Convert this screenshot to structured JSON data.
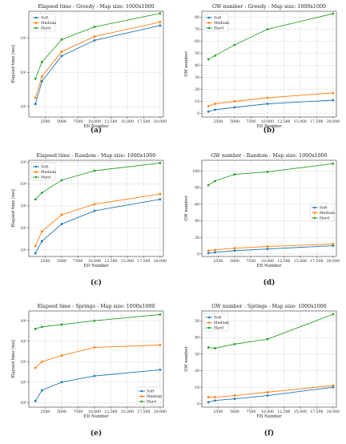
{
  "figure": {
    "colors": {
      "Soft": "#1f77b4",
      "Medium": "#ff7f0e",
      "Hard": "#2ca02c"
    }
  },
  "chart_data": [
    {
      "id": "a",
      "caption": "(a)",
      "type": "line",
      "title": "Elapsed time - Greedy - Map size: 1000x1000",
      "xlabel": "ED Number",
      "ylabel": "Elapsed time [ms]",
      "yscale": "log",
      "xlim": [
        0,
        20500
      ],
      "ylim": [
        5,
        6000
      ],
      "x_ticks": [
        2500,
        5000,
        7500,
        10000,
        12500,
        15000,
        17500,
        20000
      ],
      "x_tick_labels": [
        "2500",
        "5000",
        "7500",
        "10,000",
        "12,500",
        "15,000",
        "17,500",
        "20,000"
      ],
      "y_ticks": [
        10,
        100,
        1000
      ],
      "y_tick_labels": [
        "10¹",
        "10²",
        "10³"
      ],
      "grid": true,
      "legend_position": "top-left",
      "x": [
        1000,
        2000,
        5000,
        10000,
        20000
      ],
      "series": [
        {
          "name": "Soft",
          "values": [
            12,
            55,
            300,
            850,
            2300
          ]
        },
        {
          "name": "Medium",
          "values": [
            18,
            75,
            400,
            1100,
            2900
          ]
        },
        {
          "name": "Hard",
          "values": [
            65,
            200,
            900,
            2100,
            5200
          ]
        }
      ]
    },
    {
      "id": "b",
      "caption": "(b)",
      "type": "line",
      "title": "GW number - Greedy - Map size: 1000x1000",
      "xlabel": "ED Number",
      "ylabel": "GW number",
      "yscale": "linear",
      "xlim": [
        0,
        20500
      ],
      "ylim": [
        -3,
        85
      ],
      "x_ticks": [
        2500,
        5000,
        7500,
        10000,
        12500,
        15000,
        17500,
        20000
      ],
      "x_tick_labels": [
        "2500",
        "5000",
        "7500",
        "10,000",
        "12,500",
        "15,000",
        "17,500",
        "20,000"
      ],
      "y_ticks": [
        0,
        10,
        20,
        30,
        40,
        50,
        60,
        70,
        80
      ],
      "y_tick_labels": [
        "0",
        "10",
        "20",
        "30",
        "40",
        "50",
        "60",
        "70",
        "80"
      ],
      "grid": true,
      "legend_position": "top-left",
      "x": [
        1000,
        2000,
        5000,
        10000,
        20000
      ],
      "series": [
        {
          "name": "Soft",
          "values": [
            1.5,
            3,
            5,
            8,
            11
          ]
        },
        {
          "name": "Medium",
          "values": [
            6,
            8,
            10,
            13,
            17
          ]
        },
        {
          "name": "Hard",
          "values": [
            45,
            48,
            57,
            70,
            83
          ]
        }
      ]
    },
    {
      "id": "c",
      "caption": "(c)",
      "type": "line",
      "title": "Elapsed time - Random - Map size: 1000x1000",
      "xlabel": "ED Number",
      "ylabel": "Elapsed time [ms]",
      "yscale": "log",
      "xlim": [
        0,
        20500
      ],
      "ylim": [
        5,
        120000
      ],
      "x_ticks": [
        2500,
        5000,
        7500,
        10000,
        12500,
        15000,
        17500,
        20000
      ],
      "x_tick_labels": [
        "2500",
        "5000",
        "7500",
        "10,000",
        "12,500",
        "15,000",
        "17,500",
        "20,000"
      ],
      "y_ticks": [
        10,
        100,
        1000,
        10000,
        100000
      ],
      "y_tick_labels": [
        "10¹",
        "10²",
        "10³",
        "10⁴",
        "10⁵"
      ],
      "grid": true,
      "legend_position": "top-left",
      "x": [
        1000,
        2000,
        5000,
        10000,
        20000
      ],
      "series": [
        {
          "name": "Soft",
          "values": [
            7,
            25,
            150,
            600,
            2000
          ]
        },
        {
          "name": "Medium",
          "values": [
            15,
            70,
            400,
            1200,
            3500
          ]
        },
        {
          "name": "Hard",
          "values": [
            2000,
            4000,
            15000,
            40000,
            90000
          ]
        }
      ]
    },
    {
      "id": "d",
      "caption": "(d)",
      "type": "line",
      "title": "GW number - Random - Map size: 1000x1000",
      "xlabel": "ED Number",
      "ylabel": "GW number",
      "yscale": "linear",
      "xlim": [
        0,
        20500
      ],
      "ylim": [
        -3,
        113
      ],
      "x_ticks": [
        2500,
        5000,
        7500,
        10000,
        12500,
        15000,
        17500,
        20000
      ],
      "x_tick_labels": [
        "2500",
        "5000",
        "7500",
        "10,000",
        "12,500",
        "15,000",
        "17,500",
        "20,000"
      ],
      "y_ticks": [
        0,
        20,
        40,
        60,
        80,
        100
      ],
      "y_tick_labels": [
        "0",
        "20",
        "40",
        "60",
        "80",
        "100"
      ],
      "grid": true,
      "legend_position": "center-right",
      "x": [
        1000,
        2000,
        5000,
        10000,
        20000
      ],
      "series": [
        {
          "name": "Soft",
          "values": [
            1,
            2,
            4,
            6,
            10
          ]
        },
        {
          "name": "Medium",
          "values": [
            4,
            5,
            7,
            9,
            12
          ]
        },
        {
          "name": "Hard",
          "values": [
            83,
            88,
            96,
            99,
            109
          ]
        }
      ]
    },
    {
      "id": "e",
      "caption": "(e)",
      "type": "line",
      "title": "Elapsed time - Springs - Map size: 1000x1000",
      "xlabel": "ED Number",
      "ylabel": "Elapsed time [ms]",
      "yscale": "log",
      "xlim": [
        0,
        20500
      ],
      "ylim": [
        0.6,
        30000
      ],
      "x_ticks": [
        2500,
        5000,
        7500,
        10000,
        12500,
        15000,
        17500,
        20000
      ],
      "x_tick_labels": [
        "2500",
        "5000",
        "7500",
        "10,000",
        "12,500",
        "15,000",
        "17,500",
        "20,000"
      ],
      "y_ticks": [
        1,
        10,
        100,
        1000,
        10000
      ],
      "y_tick_labels": [
        "10⁰",
        "10¹",
        "10²",
        "10³",
        "10⁴"
      ],
      "grid": true,
      "legend_position": "bottom-right",
      "x": [
        1000,
        2000,
        5000,
        10000,
        20000
      ],
      "series": [
        {
          "name": "Soft",
          "values": [
            1.2,
            4,
            10,
            20,
            40
          ]
        },
        {
          "name": "Medium",
          "values": [
            50,
            100,
            200,
            500,
            650
          ]
        },
        {
          "name": "Hard",
          "values": [
            4000,
            5000,
            6500,
            10000,
            20000
          ]
        }
      ]
    },
    {
      "id": "f",
      "caption": "(f)",
      "type": "line",
      "title": "GW number - Springs - Map size: 1000x1000",
      "xlabel": "ED Number",
      "ylabel": "GW number",
      "yscale": "linear",
      "xlim": [
        0,
        20500
      ],
      "ylim": [
        -2,
        56
      ],
      "x_ticks": [
        2500,
        5000,
        7500,
        10000,
        12500,
        15000,
        17500,
        20000
      ],
      "x_tick_labels": [
        "2500",
        "5000",
        "7500",
        "10,000",
        "12,500",
        "15,000",
        "17,500",
        "20,000"
      ],
      "y_ticks": [
        0,
        10,
        20,
        30,
        40,
        50
      ],
      "y_tick_labels": [
        "0",
        "10",
        "20",
        "30",
        "40",
        "50"
      ],
      "grid": true,
      "legend_position": "top-left",
      "x": [
        1000,
        2000,
        5000,
        10000,
        20000
      ],
      "series": [
        {
          "name": "Soft",
          "values": [
            1,
            2,
            3,
            5,
            10
          ]
        },
        {
          "name": "Medium",
          "values": [
            4,
            4,
            5,
            7,
            11
          ]
        },
        {
          "name": "Hard",
          "values": [
            34,
            33.5,
            36,
            39,
            54
          ]
        }
      ]
    }
  ]
}
